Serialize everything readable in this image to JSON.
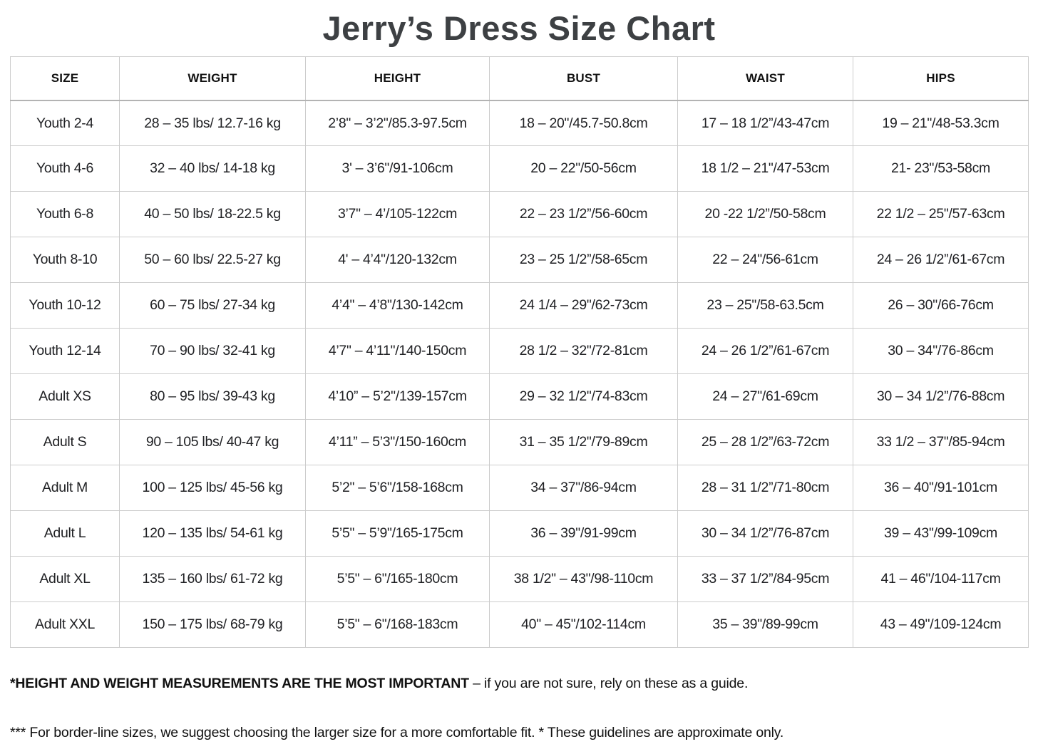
{
  "title": "Jerry’s Dress Size Chart",
  "table": {
    "columns": [
      "SIZE",
      "WEIGHT",
      "HEIGHT",
      "BUST",
      "WAIST",
      "HIPS"
    ],
    "rows": [
      {
        "size": "Youth 2-4",
        "weight": "28 – 35 lbs/ 12.7-16 kg",
        "height": "2’8\" – 3’2\"/85.3-97.5cm",
        "bust": "18 – 20\"/45.7-50.8cm",
        "waist": "17 – 18 1/2”/43-47cm",
        "hips": "19 – 21\"/48-53.3cm"
      },
      {
        "size": "Youth 4-6",
        "weight": "32 – 40 lbs/ 14-18 kg",
        "height": "3' – 3’6\"/91-106cm",
        "bust": "20 – 22\"/50-56cm",
        "waist": "18 1/2 – 21\"/47-53cm",
        "hips": "21- 23\"/53-58cm"
      },
      {
        "size": "Youth 6-8",
        "weight": "40 – 50 lbs/ 18-22.5 kg",
        "height": "3’7\" – 4’/105-122cm",
        "bust": "22 – 23 1/2”/56-60cm",
        "waist": "20 -22 1/2”/50-58cm",
        "hips": "22 1/2 – 25\"/57-63cm"
      },
      {
        "size": "Youth 8-10",
        "weight": "50 – 60 lbs/ 22.5-27 kg",
        "height": "4' – 4’4\"/120-132cm",
        "bust": "23 – 25 1/2”/58-65cm",
        "waist": "22 – 24\"/56-61cm",
        "hips": "24 – 26 1/2”/61-67cm"
      },
      {
        "size": "Youth 10-12",
        "weight": "60 – 75 lbs/ 27-34 kg",
        "height": "4’4\" – 4’8\"/130-142cm",
        "bust": "24 1/4 – 29\"/62-73cm",
        "waist": "23 – 25\"/58-63.5cm",
        "hips": "26 – 30\"/66-76cm"
      },
      {
        "size": "Youth 12-14",
        "weight": "70 – 90 lbs/ 32-41 kg",
        "height": "4’7\" – 4’11\"/140-150cm",
        "bust": "28 1/2 – 32\"/72-81cm",
        "waist": "24 – 26 1/2”/61-67cm",
        "hips": "30 – 34\"/76-86cm"
      },
      {
        "size": "Adult XS",
        "weight": "80 – 95 lbs/ 39-43 kg",
        "height": "4’10” – 5’2\"/139-157cm",
        "bust": "29 – 32 1/2\"/74-83cm",
        "waist": "24 – 27\"/61-69cm",
        "hips": "30 – 34 1/2”/76-88cm"
      },
      {
        "size": "Adult S",
        "weight": "90 – 105 lbs/ 40-47 kg",
        "height": "4’11” – 5’3\"/150-160cm",
        "bust": "31 – 35 1/2\"/79-89cm",
        "waist": "25 – 28 1/2”/63-72cm",
        "hips": "33 1/2 – 37\"/85-94cm"
      },
      {
        "size": "Adult M",
        "weight": "100 – 125 lbs/ 45-56 kg",
        "height": "5’2\" – 5’6\"/158-168cm",
        "bust": "34 – 37\"/86-94cm",
        "waist": "28 – 31 1/2”/71-80cm",
        "hips": "36 – 40\"/91-101cm"
      },
      {
        "size": "Adult L",
        "weight": "120 – 135 lbs/ 54-61 kg",
        "height": "5’5\" – 5’9\"/165-175cm",
        "bust": "36 – 39\"/91-99cm",
        "waist": "30 – 34 1/2”/76-87cm",
        "hips": "39 – 43\"/99-109cm"
      },
      {
        "size": "Adult XL",
        "weight": "135 – 160 lbs/ 61-72 kg",
        "height": "5’5\" – 6\"/165-180cm",
        "bust": "38 1/2\" – 43\"/98-110cm",
        "waist": "33 – 37 1/2”/84-95cm",
        "hips": "41 – 46\"/104-117cm"
      },
      {
        "size": "Adult XXL",
        "weight": "150 – 175 lbs/ 68-79 kg",
        "height": "5’5\" – 6\"/168-183cm",
        "bust": "40\" – 45\"/102-114cm",
        "waist": "35 – 39\"/89-99cm",
        "hips": "43 – 49\"/109-124cm"
      }
    ]
  },
  "notes": {
    "note1_bold": "*HEIGHT AND WEIGHT MEASUREMENTS ARE THE MOST IMPORTANT",
    "note1_rest": " – if you are not sure, rely on these as a guide.",
    "note2": "*** For border-line sizes, we suggest choosing the larger size for a more comfortable fit. * These guidelines are approximate only."
  },
  "colors": {
    "title": "#3d4043",
    "body_text": "#202124",
    "border": "#cccccc",
    "header_rule": "#b3b3b3",
    "background": "#ffffff"
  }
}
